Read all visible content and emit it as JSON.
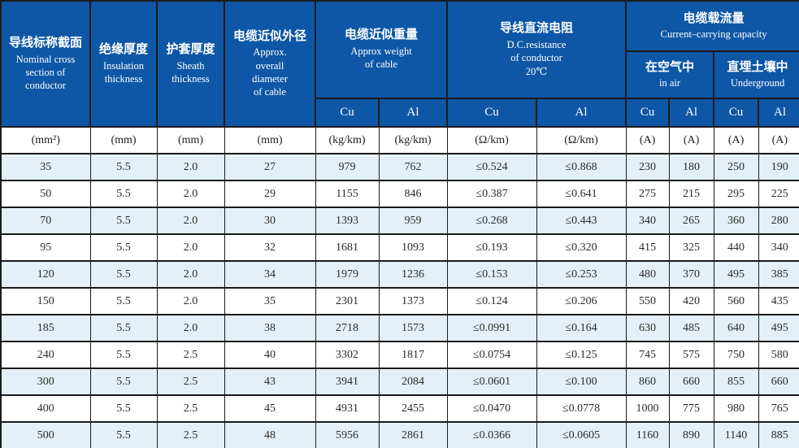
{
  "chart_data": {
    "type": "table",
    "header": {
      "nominal_section": {
        "zh": "导线标称截面",
        "en": "Nominal cross\nsection of\nconductor"
      },
      "insulation": {
        "zh": "绝缘厚度",
        "en": "Insulation\nthickness"
      },
      "sheath": {
        "zh": "护套厚度",
        "en": "Sheath\nthickness"
      },
      "diameter": {
        "zh": "电缆近似外径",
        "en": "Approx.\noverall\ndiameter\nof cable"
      },
      "weight": {
        "zh": "电缆近似重量",
        "en": "Approx weight\nof cable"
      },
      "resistance": {
        "zh": "导线直流电阻",
        "en": "D.C.resistance\nof conductor\n20℃"
      },
      "capacity": {
        "zh": "电缆载流量",
        "en": "Current–carrying capacity"
      },
      "in_air": {
        "zh": "在空气中",
        "en": "in air"
      },
      "underground": {
        "zh": "直埋土壤中",
        "en": "Underground"
      },
      "cu": "Cu",
      "al": "Al"
    },
    "units": [
      "(mm²)",
      "(mm)",
      "(mm)",
      "(mm)",
      "(kg/km)",
      "(kg/km)",
      "(Ω/km)",
      "(Ω/km)",
      "(A)",
      "(A)",
      "(A)",
      "(A)"
    ],
    "rows": [
      [
        "35",
        "5.5",
        "2.0",
        "27",
        "979",
        "762",
        "≤0.524",
        "≤0.868",
        "230",
        "180",
        "250",
        "190"
      ],
      [
        "50",
        "5.5",
        "2.0",
        "29",
        "1155",
        "846",
        "≤0.387",
        "≤0.641",
        "275",
        "215",
        "295",
        "225"
      ],
      [
        "70",
        "5.5",
        "2.0",
        "30",
        "1393",
        "959",
        "≤0.268",
        "≤0.443",
        "340",
        "265",
        "360",
        "280"
      ],
      [
        "95",
        "5.5",
        "2.0",
        "32",
        "1681",
        "1093",
        "≤0.193",
        "≤0.320",
        "415",
        "325",
        "440",
        "340"
      ],
      [
        "120",
        "5.5",
        "2.0",
        "34",
        "1979",
        "1236",
        "≤0.153",
        "≤0.253",
        "480",
        "370",
        "495",
        "385"
      ],
      [
        "150",
        "5.5",
        "2.0",
        "35",
        "2301",
        "1373",
        "≤0.124",
        "≤0.206",
        "550",
        "420",
        "560",
        "435"
      ],
      [
        "185",
        "5.5",
        "2.0",
        "38",
        "2718",
        "1573",
        "≤0.0991",
        "≤0.164",
        "630",
        "485",
        "640",
        "495"
      ],
      [
        "240",
        "5.5",
        "2.5",
        "40",
        "3302",
        "1817",
        "≤0.0754",
        "≤0.125",
        "745",
        "575",
        "750",
        "580"
      ],
      [
        "300",
        "5.5",
        "2.5",
        "43",
        "3941",
        "2084",
        "≤0.0601",
        "≤0.100",
        "860",
        "660",
        "855",
        "660"
      ],
      [
        "400",
        "5.5",
        "2.5",
        "45",
        "4931",
        "2455",
        "≤0.0470",
        "≤0.0778",
        "1000",
        "775",
        "980",
        "765"
      ],
      [
        "500",
        "5.5",
        "2.5",
        "48",
        "5956",
        "2861",
        "≤0.0366",
        "≤0.0605",
        "1160",
        "890",
        "1140",
        "885"
      ]
    ],
    "colors": {
      "header_bg": "#0e57a6",
      "header_text": "#ffffff",
      "stripe_bg": "#e3f0f9",
      "row_bg": "#ffffff",
      "border": "#1a1a1a",
      "body_text": "#2b2b2b"
    },
    "layout": {
      "stripe_pattern": "odd-rows-light-blue",
      "grid": true
    }
  }
}
